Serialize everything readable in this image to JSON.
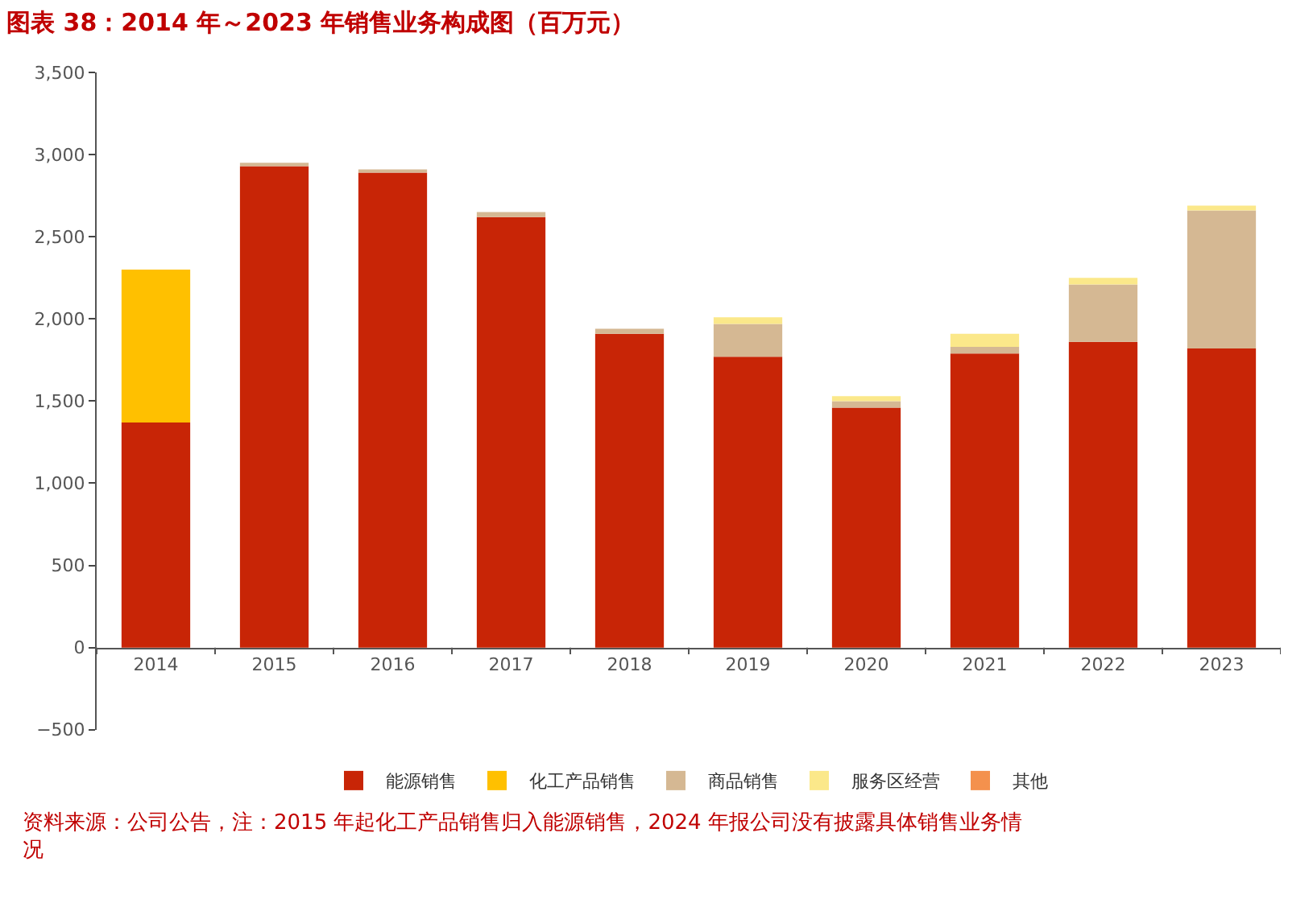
{
  "chart_data": {
    "type": "bar",
    "stacked": true,
    "title": "图表 38：2014 年～2023 年销售业务构成图（百万元）",
    "categories": [
      "2014",
      "2015",
      "2016",
      "2017",
      "2018",
      "2019",
      "2020",
      "2021",
      "2022",
      "2023"
    ],
    "series": [
      {
        "name": "能源销售",
        "color": "#c82506",
        "values": [
          1370,
          2930,
          2890,
          2620,
          1910,
          1770,
          1460,
          1790,
          1860,
          1820
        ]
      },
      {
        "name": "化工产品销售",
        "color": "#ffc000",
        "values": [
          930,
          null,
          null,
          null,
          null,
          null,
          null,
          null,
          null,
          null
        ]
      },
      {
        "name": "商品销售",
        "color": "#d5b893",
        "values": [
          null,
          20,
          20,
          30,
          30,
          200,
          40,
          40,
          350,
          840
        ]
      },
      {
        "name": "服务区经营",
        "color": "#fbe88a",
        "values": [
          null,
          null,
          null,
          null,
          null,
          40,
          30,
          80,
          40,
          30
        ]
      },
      {
        "name": "其他",
        "color": "#f4914d",
        "values": [
          null,
          null,
          null,
          null,
          null,
          null,
          null,
          null,
          null,
          null
        ]
      }
    ],
    "ylim": [
      -500,
      3500
    ],
    "yticks": [
      {
        "value": -500,
        "label": "−500"
      },
      0,
      500,
      {
        "value": 1000,
        "label": "1,000"
      },
      {
        "value": 1500,
        "label": "1,500"
      },
      {
        "value": 2000,
        "label": "2,000"
      },
      {
        "value": 2500,
        "label": "2,500"
      },
      {
        "value": 3000,
        "label": "3,000"
      },
      {
        "value": 3500,
        "label": "3,500"
      }
    ],
    "legend": "bottom",
    "annotations": [
      "资料来源：公司公告，注：2015 年起化工产品销售归入能源销售，2024 年报公司没有披露具体销售业务情况"
    ]
  }
}
